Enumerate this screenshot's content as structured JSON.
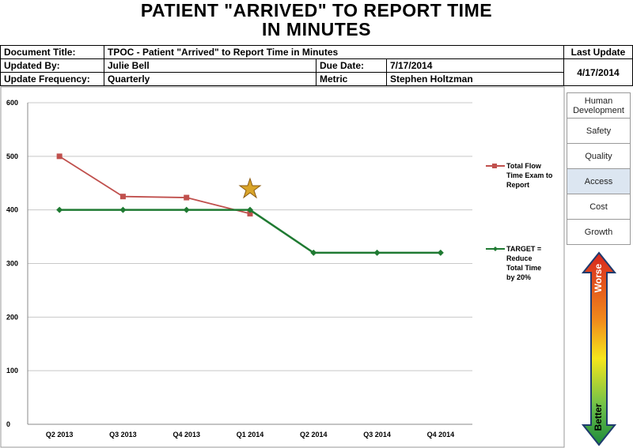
{
  "title": [
    "PATIENT \"ARRIVED\" TO REPORT TIME",
    "IN MINUTES"
  ],
  "info": {
    "document_title_label": "Document Title:",
    "document_title": "TPOC - Patient \"Arrived\" to Report Time in Minutes",
    "updated_by_label": "Updated By:",
    "updated_by": "Julie Bell",
    "due_date_label": "Due Date:",
    "due_date": "7/17/2014",
    "frequency_label": "Update Frequency:",
    "frequency": "Quarterly",
    "metric_label": "Metric",
    "metric": "Stephen Holtzman",
    "last_update_label": "Last Update",
    "last_update": "4/17/2014"
  },
  "categories_panel": [
    "Human Development",
    "Safety",
    "Quality",
    "Access",
    "Cost",
    "Growth"
  ],
  "scale": {
    "top": "Worse",
    "bottom": "Better"
  },
  "chart_data": {
    "type": "line",
    "categories": [
      "Q2 2013",
      "Q3 2013",
      "Q4 2013",
      "Q1 2014",
      "Q2 2014",
      "Q3 2014",
      "Q4 2014"
    ],
    "series": [
      {
        "name": "Total Flow Time Exam to Report",
        "color": "#c0504d",
        "marker": "square",
        "values": [
          500,
          425,
          423,
          393,
          null,
          null,
          null
        ]
      },
      {
        "name": "TARGET = Reduce Total Time by 20%",
        "color": "#1f7a32",
        "marker": "diamond",
        "values": [
          400,
          400,
          400,
          400,
          320,
          320,
          320
        ]
      }
    ],
    "ylim": [
      0,
      600
    ],
    "yticks": [
      0,
      100,
      200,
      300,
      400,
      500,
      600
    ],
    "grid": true
  }
}
